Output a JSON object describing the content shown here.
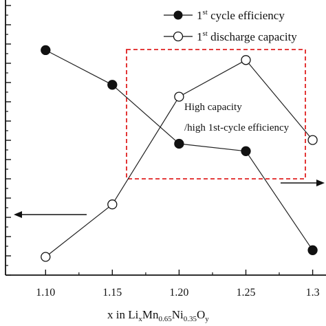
{
  "chart_data": {
    "type": "line",
    "x": [
      1.1,
      1.15,
      1.2,
      1.25,
      1.3
    ],
    "x_tick_labels": [
      "1.10",
      "1.15",
      "1.20",
      "1.25",
      "1.3"
    ],
    "xlim": [
      1.07,
      1.31
    ],
    "ylim": [
      0,
      1
    ],
    "y_ticks_count": 14,
    "series": [
      {
        "name": "1st cycle efficiency",
        "label_main": "1",
        "label_sup": "st",
        "label_rest": " cycle efficiency",
        "marker": "filled-circle",
        "values": [
          0.853,
          0.713,
          0.475,
          0.445,
          0.045
        ]
      },
      {
        "name": "1st discharge capacity",
        "label_main": "1",
        "label_sup": "st",
        "label_rest": " discharge capacity",
        "marker": "open-circle",
        "values": [
          0.018,
          0.23,
          0.665,
          0.813,
          0.49
        ]
      }
    ],
    "xlabel": {
      "prefix": "x in Li",
      "sub1": "x",
      "mid1": "Mn",
      "sub2": "0.65",
      "mid2": "Ni",
      "sub3": "0.35",
      "mid3": "O",
      "sub4": "y"
    },
    "annotation": {
      "line1": "High capacity",
      "line2": "/high 1st-cycle efficiency"
    },
    "highlight_color": "#e02020",
    "line_color": "#222222"
  }
}
